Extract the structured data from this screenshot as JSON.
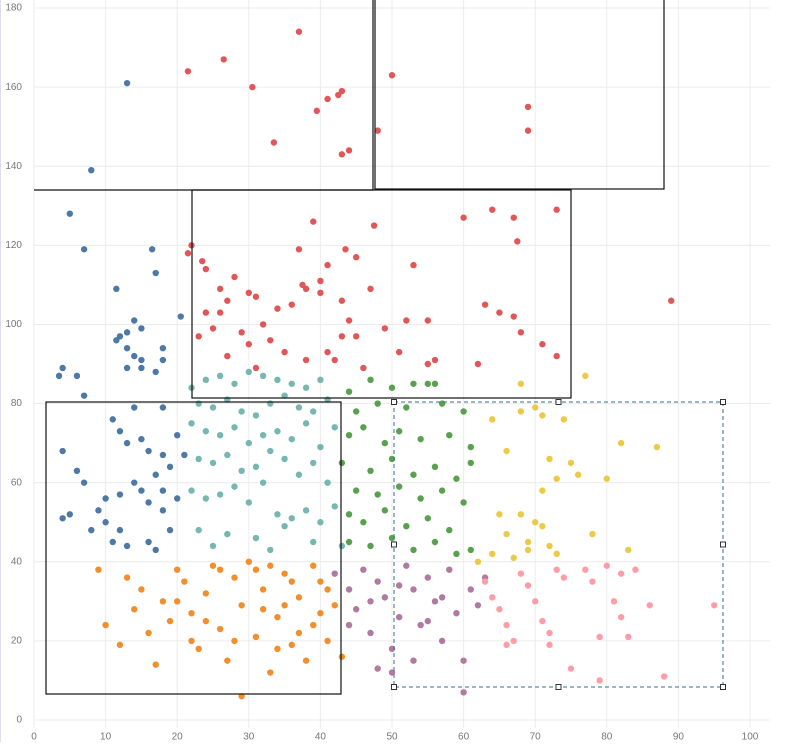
{
  "chart_data": {
    "type": "scatter",
    "xlim": [
      0,
      100
    ],
    "xticks": [
      0,
      10,
      20,
      30,
      40,
      50,
      60,
      70,
      80,
      90,
      100
    ],
    "ylim": [
      0,
      180
    ],
    "yticks": [
      0,
      20,
      40,
      60,
      80,
      100,
      120,
      140,
      160,
      180
    ],
    "grid": true,
    "series": [
      {
        "color": "#4e79a7",
        "x": [
          13,
          8,
          5,
          7,
          16.5,
          17,
          11.5,
          20.5,
          14,
          15,
          13,
          11.5,
          12,
          13,
          14,
          15,
          18,
          18,
          13,
          15,
          17,
          3.5,
          4,
          6,
          7,
          14,
          18,
          11,
          12,
          13,
          15,
          16,
          18,
          19,
          17,
          14,
          12,
          10,
          9,
          10,
          12,
          11,
          13,
          16,
          17,
          19,
          18,
          16,
          20,
          4,
          6,
          7,
          5,
          4,
          8,
          20,
          21,
          15,
          18
        ],
        "values": [
          161,
          139,
          128,
          119,
          119,
          113,
          109,
          102,
          101,
          99,
          98,
          96,
          97,
          94,
          92,
          91,
          94,
          91,
          89,
          89,
          88,
          87,
          89,
          87,
          82,
          79,
          79,
          76,
          73,
          70,
          71,
          68,
          67,
          64,
          62,
          60,
          57,
          56,
          53,
          50,
          48,
          45,
          44,
          45,
          43,
          48,
          53,
          55,
          56,
          68,
          63,
          60,
          52,
          51,
          48,
          72,
          67,
          58,
          58
        ]
      },
      {
        "color": "#e15759",
        "x": [
          21.5,
          26.5,
          30.5,
          37,
          33.5,
          39.5,
          41,
          42.5,
          43,
          43,
          44,
          48,
          50,
          69,
          69,
          43.5,
          45,
          40,
          41,
          37,
          39,
          47.5,
          53,
          60,
          64,
          67,
          67.5,
          73,
          89,
          22,
          21.5,
          23.5,
          24,
          26,
          28,
          27,
          30,
          31,
          32,
          34,
          36,
          37.5,
          38,
          40,
          43,
          44,
          47,
          49,
          52,
          55,
          63,
          65,
          67,
          68,
          71,
          73,
          24,
          25,
          26,
          29,
          30,
          33,
          35,
          38,
          42,
          43,
          45,
          46,
          51,
          55,
          56,
          62,
          23,
          27,
          31,
          41
        ],
        "values": [
          164,
          167,
          160,
          174,
          146,
          154,
          157,
          158,
          159,
          143,
          144,
          149,
          163,
          155,
          149,
          119,
          117,
          111,
          115,
          119,
          126,
          125,
          115,
          127,
          129,
          127,
          121,
          129,
          106,
          120,
          118,
          116,
          114,
          109,
          112,
          106,
          108,
          107,
          100,
          104,
          105,
          110,
          109,
          108,
          106,
          101,
          109,
          99,
          101,
          101,
          105,
          103,
          102,
          98,
          95,
          92,
          103,
          99,
          103,
          98,
          95,
          96,
          93,
          91,
          91,
          97,
          97,
          89,
          93,
          90,
          91,
          90,
          97,
          92,
          89,
          93
        ]
      },
      {
        "color": "#76b7b2",
        "x": [
          22,
          24,
          26,
          28,
          30,
          32,
          34,
          36,
          38,
          40,
          23,
          25,
          27,
          29,
          31,
          33,
          35,
          37,
          39,
          41,
          22,
          24,
          26,
          28,
          30,
          32,
          34,
          36,
          38,
          40,
          42,
          23,
          25,
          27,
          29,
          31,
          33,
          35,
          37,
          39,
          41,
          22,
          24,
          26,
          28,
          30,
          32,
          34,
          36,
          38,
          40,
          42,
          23,
          27,
          31,
          35,
          39,
          43,
          25,
          33
        ],
        "values": [
          84,
          86,
          87,
          85,
          88,
          87,
          86,
          85,
          84,
          86,
          80,
          79,
          81,
          78,
          77,
          80,
          82,
          79,
          78,
          81,
          75,
          73,
          72,
          74,
          70,
          72,
          73,
          71,
          75,
          69,
          74,
          66,
          65,
          67,
          63,
          64,
          68,
          66,
          62,
          65,
          60,
          58,
          56,
          57,
          59,
          55,
          60,
          52,
          51,
          53,
          50,
          54,
          48,
          47,
          46,
          49,
          45,
          44,
          44,
          43
        ]
      },
      {
        "color": "#59a14f",
        "x": [
          44,
          47,
          50,
          53,
          55,
          56,
          45,
          48,
          52,
          57,
          60,
          44,
          46,
          49,
          51,
          54,
          58,
          61,
          43,
          47,
          50,
          53,
          56,
          59,
          61,
          45,
          48,
          51,
          54,
          57,
          60,
          44,
          46,
          49,
          52,
          55,
          58,
          44,
          47,
          50,
          53,
          56,
          59,
          61
        ],
        "values": [
          83,
          86,
          84,
          85,
          85,
          85,
          78,
          80,
          79,
          80,
          78,
          72,
          74,
          70,
          73,
          71,
          72,
          69,
          65,
          63,
          66,
          62,
          64,
          61,
          65,
          58,
          57,
          59,
          56,
          58,
          55,
          52,
          50,
          53,
          49,
          51,
          48,
          45,
          44,
          46,
          43,
          45,
          42,
          43
        ]
      },
      {
        "color": "#f28e2b",
        "x": [
          9,
          10,
          12,
          13,
          14,
          15,
          16,
          17,
          18,
          19,
          20,
          21,
          22,
          23,
          24,
          25,
          26,
          27,
          28,
          29,
          30,
          31,
          32,
          33,
          34,
          35,
          36,
          37,
          38,
          39,
          40,
          41,
          42,
          43,
          29,
          26,
          31,
          33,
          35,
          37,
          39,
          41,
          20,
          24,
          28,
          32,
          36,
          40,
          22,
          34
        ],
        "values": [
          38,
          24,
          19,
          36,
          28,
          33,
          22,
          14,
          30,
          25,
          38,
          35,
          27,
          18,
          32,
          39,
          23,
          15,
          36,
          29,
          40,
          21,
          33,
          12,
          26,
          37,
          19,
          31,
          15,
          24,
          35,
          20,
          29,
          16,
          6,
          38,
          38,
          39,
          29,
          22,
          39,
          33,
          30,
          25,
          20,
          28,
          35,
          27,
          20,
          18
        ]
      },
      {
        "color": "#b07aa1",
        "x": [
          42,
          44,
          45,
          46,
          47,
          48,
          49,
          50,
          51,
          52,
          53,
          54,
          55,
          56,
          57,
          58,
          59,
          60,
          61,
          62,
          63,
          48,
          50,
          53,
          60,
          55,
          47,
          44,
          51,
          57
        ],
        "values": [
          37,
          33,
          28,
          38,
          22,
          35,
          31,
          18,
          26,
          39,
          33,
          24,
          36,
          30,
          20,
          38,
          27,
          15,
          33,
          29,
          36,
          13,
          12,
          15,
          7,
          25,
          30,
          24,
          34,
          31
        ]
      },
      {
        "color": "#edc948",
        "x": [
          64,
          66,
          68,
          70,
          71,
          72,
          73,
          74,
          68,
          70,
          71,
          69,
          72,
          73,
          67,
          65,
          66,
          75,
          76,
          78,
          80,
          82,
          83,
          87,
          68,
          77,
          62,
          64,
          69,
          71
        ],
        "values": [
          76,
          68,
          78,
          79,
          77,
          66,
          61,
          76,
          52,
          50,
          49,
          45,
          44,
          42,
          41,
          52,
          47,
          65,
          62,
          47,
          61,
          70,
          43,
          69,
          85,
          87,
          40,
          42,
          43,
          58
        ]
      },
      {
        "color": "#ff9da7",
        "x": [
          63,
          65,
          66,
          67,
          68,
          70,
          71,
          72,
          73,
          74,
          72,
          75,
          78,
          79,
          80,
          81,
          82,
          83,
          84,
          86,
          88,
          79,
          95,
          66,
          64,
          69,
          77,
          82
        ],
        "values": [
          35,
          28,
          24,
          20,
          37,
          30,
          25,
          19,
          38,
          36,
          22,
          13,
          35,
          21,
          39,
          30,
          26,
          21,
          38,
          29,
          11,
          10,
          29,
          19,
          31,
          34,
          38,
          37
        ]
      }
    ]
  }
}
